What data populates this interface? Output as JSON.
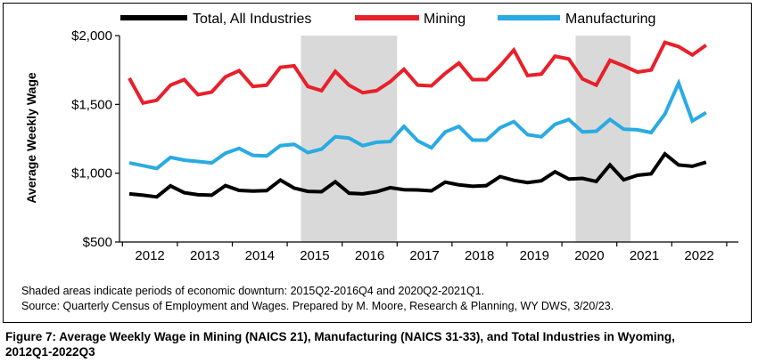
{
  "chart_data": {
    "type": "line",
    "title": "",
    "ylabel": "Average Weekly Wage",
    "xlabel": "",
    "ylim": [
      500,
      2000
    ],
    "y_ticks": [
      "$500",
      "$1,000",
      "$1,500",
      "$2,000"
    ],
    "y_tick_values": [
      500,
      1000,
      1500,
      2000
    ],
    "x_tick_labels": [
      "2012",
      "2013",
      "2014",
      "2015",
      "2016",
      "2017",
      "2018",
      "2019",
      "2020",
      "2021",
      "2022"
    ],
    "x_start_year": 2012,
    "periods_per_year": 4,
    "legend_position": "top",
    "grid": false,
    "recessions": [
      {
        "start": "2015Q2",
        "end": "2016Q4"
      },
      {
        "start": "2020Q2",
        "end": "2021Q1"
      }
    ],
    "series": [
      {
        "name": "Total, All Industries",
        "color": "#000000",
        "values": [
          850,
          840,
          828,
          908,
          858,
          843,
          840,
          910,
          875,
          870,
          873,
          950,
          892,
          868,
          865,
          938,
          855,
          850,
          865,
          895,
          880,
          878,
          872,
          935,
          915,
          905,
          910,
          975,
          948,
          932,
          945,
          1010,
          958,
          962,
          940,
          1060,
          952,
          985,
          995,
          1140,
          1060,
          1050,
          1080
        ]
      },
      {
        "name": "Mining",
        "color": "#e8202a",
        "values": [
          1690,
          1510,
          1530,
          1640,
          1680,
          1570,
          1590,
          1700,
          1745,
          1630,
          1640,
          1770,
          1780,
          1630,
          1600,
          1740,
          1640,
          1585,
          1600,
          1665,
          1755,
          1640,
          1635,
          1725,
          1800,
          1680,
          1680,
          1780,
          1895,
          1710,
          1720,
          1850,
          1830,
          1685,
          1640,
          1820,
          1780,
          1735,
          1750,
          1950,
          1920,
          1860,
          1930
        ]
      },
      {
        "name": "Manufacturing",
        "color": "#29abe2",
        "values": [
          1075,
          1055,
          1035,
          1115,
          1095,
          1085,
          1075,
          1145,
          1180,
          1130,
          1125,
          1200,
          1210,
          1150,
          1175,
          1265,
          1255,
          1200,
          1225,
          1230,
          1340,
          1235,
          1185,
          1300,
          1340,
          1240,
          1240,
          1330,
          1375,
          1280,
          1265,
          1355,
          1390,
          1300,
          1305,
          1390,
          1320,
          1315,
          1295,
          1430,
          1655,
          1380,
          1440
        ]
      }
    ]
  },
  "notes": {
    "line1": "Shaded areas indicate periods of economic downturn: 2015Q2-2016Q4 and 2020Q2-2021Q1.",
    "line2": "Source: Quarterly Census of Employment and Wages. Prepared by M. Moore, Research & Planning, WY DWS, 3/20/23."
  },
  "caption": {
    "line1": "Figure 7: Average Weekly Wage in Mining (NAICS 21), Manufacturing (NAICS 31-33),  and Total Industries in Wyoming,",
    "line2": "2012Q1-2022Q3"
  }
}
